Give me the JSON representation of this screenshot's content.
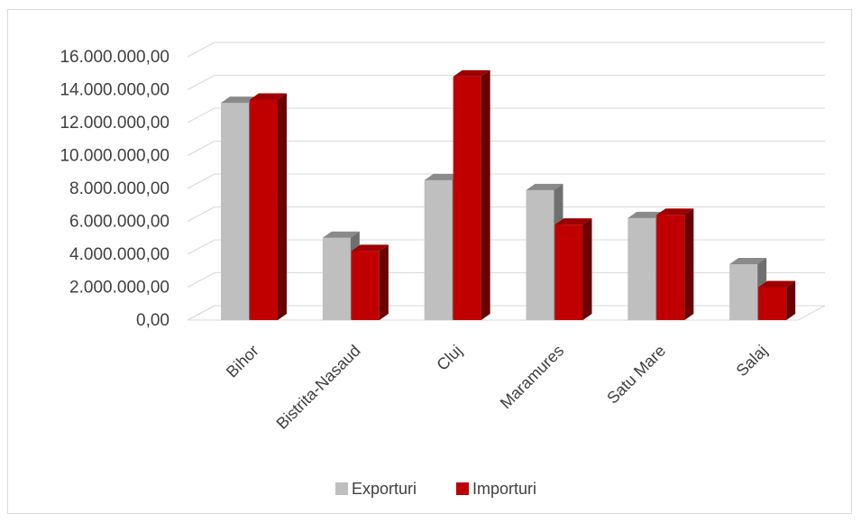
{
  "chart_data": {
    "type": "bar",
    "categories": [
      "Bihor",
      "Bistrita-Nasaud",
      "Cluj",
      "Maramures",
      "Satu Mare",
      "Salaj"
    ],
    "series": [
      {
        "name": "Exporturi",
        "color": "#bfbfbf",
        "values": [
          13200000,
          5000000,
          8500000,
          7900000,
          6200000,
          3400000
        ]
      },
      {
        "name": "Importuri",
        "color": "#c00000",
        "values": [
          13400000,
          4200000,
          14800000,
          5800000,
          6400000,
          2000000
        ]
      }
    ],
    "y_ticks": [
      "0,00",
      "2.000.000,00",
      "4.000.000,00",
      "6.000.000,00",
      "8.000.000,00",
      "10.000.000,00",
      "12.000.000,00",
      "14.000.000,00",
      "16.000.000,00"
    ],
    "ylim": [
      0,
      16000000
    ],
    "grid": true,
    "legend_position": "bottom",
    "title": "",
    "xlabel": "",
    "ylabel": ""
  }
}
